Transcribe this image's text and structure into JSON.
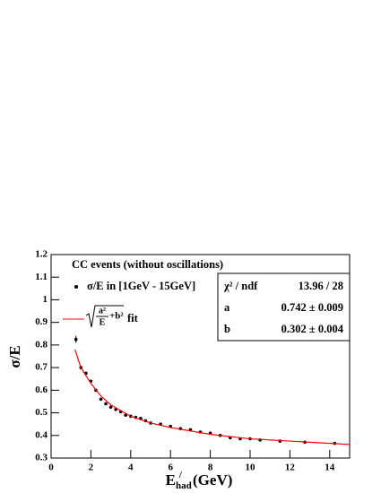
{
  "chart_data": {
    "type": "scatter",
    "xlim": [
      0,
      15
    ],
    "ylim": [
      0.3,
      1.2
    ],
    "xticks": [
      0,
      2,
      4,
      6,
      8,
      10,
      12,
      14
    ],
    "yticks": [
      0.3,
      0.4,
      0.5,
      0.6,
      0.7,
      0.8,
      0.9,
      1,
      1.1,
      1.2
    ],
    "y_label": "σ/E",
    "x_label": {
      "main": "E",
      "sub": "had",
      "sup": "/",
      "unit": " (GeV)"
    },
    "legend_title": "CC events (without oscillations)",
    "series": [
      {
        "name": "σ/E in [1GeV - 15GeV]",
        "color": "#000000",
        "x": [
          1.25,
          1.5,
          1.75,
          2.0,
          2.25,
          2.5,
          2.75,
          3.0,
          3.25,
          3.5,
          3.75,
          4.0,
          4.25,
          4.5,
          4.75,
          5.0,
          5.5,
          6.0,
          6.5,
          7.0,
          7.5,
          8.0,
          8.5,
          9.0,
          9.5,
          10.0,
          10.5,
          11.5,
          12.75,
          14.25
        ],
        "values": [
          0.825,
          0.7,
          0.675,
          0.64,
          0.6,
          0.56,
          0.54,
          0.525,
          0.515,
          0.505,
          0.49,
          0.485,
          0.48,
          0.475,
          0.465,
          0.455,
          0.45,
          0.44,
          0.43,
          0.425,
          0.415,
          0.41,
          0.4,
          0.39,
          0.385,
          0.385,
          0.38,
          0.375,
          0.37,
          0.365
        ],
        "errors": [
          0.015,
          0.008,
          0.007,
          0.007,
          0.006,
          0.006,
          0.006,
          0.005,
          0.005,
          0.005,
          0.005,
          0.005,
          0.005,
          0.005,
          0.005,
          0.005,
          0.004,
          0.004,
          0.004,
          0.004,
          0.004,
          0.004,
          0.004,
          0.004,
          0.004,
          0.004,
          0.004,
          0.004,
          0.004,
          0.004
        ]
      },
      {
        "name": "fit",
        "color": "#ff0000",
        "line": true,
        "formula": {
          "numerator": "a²",
          "denominator": "E",
          "tail": "+b²"
        },
        "x": [
          1.2,
          1.5,
          2,
          2.5,
          3,
          4,
          5,
          6,
          7,
          8,
          9,
          10,
          11,
          12,
          13,
          14,
          15
        ],
        "values": [
          0.78,
          0.7,
          0.63,
          0.575,
          0.535,
          0.485,
          0.455,
          0.435,
          0.42,
          0.405,
          0.395,
          0.385,
          0.38,
          0.375,
          0.37,
          0.365,
          0.36
        ]
      }
    ],
    "stats": [
      [
        "χ² / ndf",
        "13.96 / 28"
      ],
      [
        "a",
        "0.742 ± 0.009"
      ],
      [
        "b",
        "0.302 ± 0.004"
      ]
    ]
  }
}
